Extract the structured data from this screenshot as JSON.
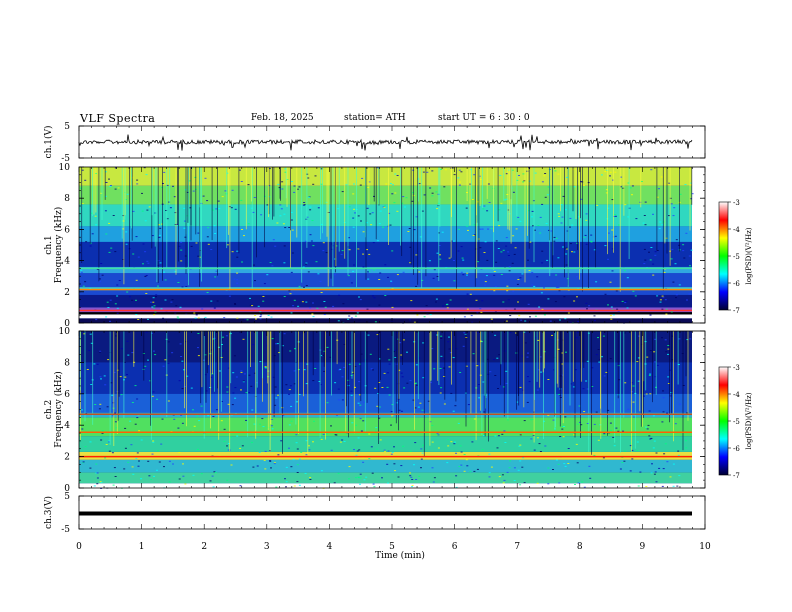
{
  "header": {
    "title": "VLF Spectra",
    "date": "Feb. 18, 2025",
    "station": "station= ATH",
    "start": "start UT = 6 : 30 : 0"
  },
  "colorbar": {
    "label": "log(PSD)(V²/Hz)",
    "ticks": [
      "-3",
      "-4",
      "-5",
      "-6",
      "-7"
    ],
    "stops": [
      "#ffffff",
      "#ff0000",
      "#ffff00",
      "#00ff00",
      "#00ffff",
      "#0000ff",
      "#000033"
    ]
  },
  "chart_data": [
    {
      "type": "line",
      "panel": "ch1-waveform",
      "ylabel": "ch.1(V)",
      "ylim": [
        -5,
        5
      ],
      "yticks": [
        "5",
        "-5"
      ],
      "xlim": [
        0,
        10
      ],
      "baseline": 0,
      "description": "noisy waveform near 0 V with sparse spikes"
    },
    {
      "type": "heatmap",
      "panel": "ch1-spectrogram",
      "ylabel": "ch.1 Frequency (kHz)",
      "ylim": [
        0,
        10
      ],
      "yticks": [
        "0",
        "2",
        "4",
        "6",
        "8",
        "10"
      ],
      "xlim": [
        0,
        10
      ],
      "bands": [
        {
          "f0": 0.0,
          "f1": 0.3,
          "c": "#0a0a55"
        },
        {
          "f0": 0.3,
          "f1": 0.55,
          "c": "#ffffff"
        },
        {
          "f0": 0.55,
          "f1": 0.7,
          "c": "#000000"
        },
        {
          "f0": 0.7,
          "f1": 1.0,
          "c": "#8855cc"
        },
        {
          "f0": 1.0,
          "f1": 1.8,
          "c": "#0a1a8a"
        },
        {
          "f0": 1.8,
          "f1": 2.1,
          "c": "#1a4ad0"
        },
        {
          "f0": 2.1,
          "f1": 2.3,
          "c": "#40d0d0"
        },
        {
          "f0": 2.3,
          "f1": 3.2,
          "c": "#1a4ad0"
        },
        {
          "f0": 3.2,
          "f1": 3.6,
          "c": "#30a8e0"
        },
        {
          "f0": 3.6,
          "f1": 5.2,
          "c": "#0b2fb0"
        },
        {
          "f0": 5.2,
          "f1": 6.2,
          "c": "#1fa0e0"
        },
        {
          "f0": 6.2,
          "f1": 7.6,
          "c": "#30d8c0"
        },
        {
          "f0": 7.6,
          "f1": 8.8,
          "c": "#70e060"
        },
        {
          "f0": 8.8,
          "f1": 10.0,
          "c": "#c8e840"
        }
      ],
      "lines": [
        {
          "f": 2.15,
          "c": "#ff8800"
        },
        {
          "f": 3.5,
          "c": "#40e0a0"
        },
        {
          "f": 0.8,
          "c": "#ff3030"
        }
      ]
    },
    {
      "type": "heatmap",
      "panel": "ch2-spectrogram",
      "ylabel": "ch.2 Frequency (kHz)",
      "ylim": [
        0,
        10
      ],
      "yticks": [
        "0",
        "2",
        "4",
        "6",
        "8",
        "10"
      ],
      "xlim": [
        0,
        10
      ],
      "bands": [
        {
          "f0": 0.0,
          "f1": 0.3,
          "c": "#ffffff"
        },
        {
          "f0": 0.3,
          "f1": 1.0,
          "c": "#40d0a0"
        },
        {
          "f0": 1.0,
          "f1": 1.8,
          "c": "#30b8d0"
        },
        {
          "f0": 1.8,
          "f1": 2.3,
          "c": "#e8e040"
        },
        {
          "f0": 2.3,
          "f1": 3.3,
          "c": "#30d0a0"
        },
        {
          "f0": 3.3,
          "f1": 4.5,
          "c": "#50e060"
        },
        {
          "f0": 4.5,
          "f1": 4.8,
          "c": "#30b0d0"
        },
        {
          "f0": 4.8,
          "f1": 6.0,
          "c": "#1a60d8"
        },
        {
          "f0": 6.0,
          "f1": 8.0,
          "c": "#0b2fb0"
        },
        {
          "f0": 8.0,
          "f1": 10.0,
          "c": "#0a1a80"
        }
      ],
      "lines": [
        {
          "f": 2.0,
          "c": "#ff2000"
        },
        {
          "f": 3.55,
          "c": "#ff6000"
        },
        {
          "f": 4.7,
          "c": "#c05020"
        }
      ]
    },
    {
      "type": "line",
      "panel": "ch3-waveform",
      "ylabel": "ch.3(V)",
      "ylim": [
        -5,
        5
      ],
      "yticks": [
        "5",
        "-5"
      ],
      "xlim": [
        0,
        10
      ],
      "baseline": 0,
      "description": "flat thick black trace near 0 V"
    }
  ],
  "xaxis": {
    "label": "Time (min)",
    "ticks": [
      "0",
      "1",
      "2",
      "3",
      "4",
      "5",
      "6",
      "7",
      "8",
      "9",
      "10"
    ]
  }
}
